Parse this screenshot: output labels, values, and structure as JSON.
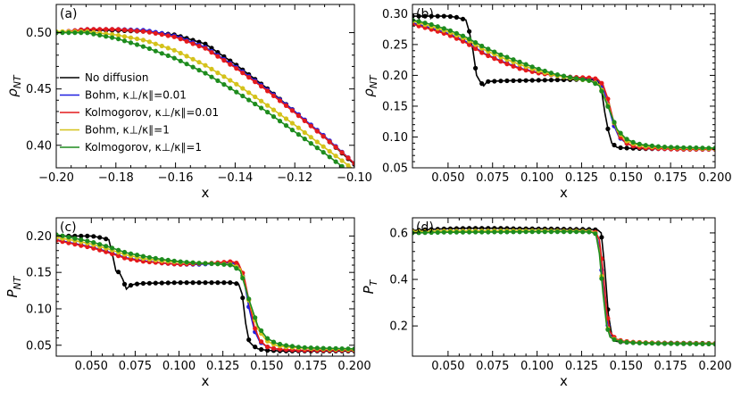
{
  "chart_data": [
    {
      "type": "line",
      "label": "(a)",
      "xlabel": "x",
      "ylabel": "ρNT",
      "ylabel_main": "ρ",
      "ylabel_sub": "NT",
      "xlim": [
        -0.2,
        -0.1
      ],
      "ylim": [
        0.38,
        0.525
      ],
      "xticks": [
        -0.2,
        -0.18,
        -0.16,
        -0.14,
        -0.12,
        -0.1
      ],
      "xtick_labels": [
        "−0.20",
        "−0.18",
        "−0.16",
        "−0.14",
        "−0.12",
        "−0.10"
      ],
      "yticks": [
        0.4,
        0.45,
        0.5
      ],
      "ytick_labels": [
        "0.40",
        "0.45",
        "0.50"
      ],
      "legend": {
        "placement": "center-left",
        "entries": [
          {
            "label": "No diffusion",
            "color": "#000000"
          },
          {
            "label": "Bohm, κ⊥/κ∥=0.01",
            "color": "#1f1fe0"
          },
          {
            "label": "Kolmogorov, κ⊥/κ∥=0.01",
            "color": "#e41a1c"
          },
          {
            "label": "Bohm, κ⊥/κ∥=1",
            "color": "#d4c21a"
          },
          {
            "label": "Kolmogorov, κ⊥/κ∥=1",
            "color": "#1e8c1e"
          }
        ]
      },
      "series": [
        {
          "name": "No diffusion",
          "color": "#000000",
          "x": [
            -0.2,
            -0.19,
            -0.18,
            -0.17,
            -0.16,
            -0.15,
            -0.14,
            -0.13,
            -0.12,
            -0.11,
            -0.1
          ],
          "y": [
            0.5,
            0.502,
            0.502,
            0.501,
            0.498,
            0.49,
            0.472,
            0.452,
            0.43,
            0.407,
            0.383
          ]
        },
        {
          "name": "Bohm, κ⊥/κ∥=0.01",
          "color": "#1f1fe0",
          "x": [
            -0.2,
            -0.19,
            -0.18,
            -0.17,
            -0.16,
            -0.15,
            -0.14,
            -0.13,
            -0.12,
            -0.11,
            -0.1
          ],
          "y": [
            0.5,
            0.503,
            0.503,
            0.502,
            0.497,
            0.487,
            0.47,
            0.451,
            0.43,
            0.408,
            0.384
          ]
        },
        {
          "name": "Kolmogorov, κ⊥/κ∥=0.01",
          "color": "#e41a1c",
          "x": [
            -0.2,
            -0.19,
            -0.18,
            -0.17,
            -0.16,
            -0.15,
            -0.14,
            -0.13,
            -0.12,
            -0.11,
            -0.1
          ],
          "y": [
            0.5,
            0.503,
            0.503,
            0.501,
            0.496,
            0.486,
            0.469,
            0.45,
            0.429,
            0.407,
            0.384
          ]
        },
        {
          "name": "Bohm, κ⊥/κ∥=1",
          "color": "#d4c21a",
          "x": [
            -0.2,
            -0.19,
            -0.18,
            -0.17,
            -0.16,
            -0.15,
            -0.14,
            -0.13,
            -0.12,
            -0.11,
            -0.1
          ],
          "y": [
            0.501,
            0.501,
            0.498,
            0.493,
            0.484,
            0.471,
            0.455,
            0.437,
            0.418,
            0.398,
            0.378
          ]
        },
        {
          "name": "Kolmogorov, κ⊥/κ∥=1",
          "color": "#1e8c1e",
          "x": [
            -0.2,
            -0.19,
            -0.18,
            -0.17,
            -0.16,
            -0.15,
            -0.14,
            -0.13,
            -0.12,
            -0.11,
            -0.1
          ],
          "y": [
            0.5,
            0.5,
            0.495,
            0.487,
            0.477,
            0.464,
            0.448,
            0.431,
            0.412,
            0.393,
            0.373
          ]
        }
      ]
    },
    {
      "type": "line",
      "label": "(b)",
      "xlabel": "x",
      "ylabel": "ρNT",
      "ylabel_main": "ρ",
      "ylabel_sub": "NT",
      "xlim": [
        0.03,
        0.2
      ],
      "ylim": [
        0.05,
        0.315
      ],
      "xticks": [
        0.05,
        0.075,
        0.1,
        0.125,
        0.15,
        0.175,
        0.2
      ],
      "xtick_labels": [
        "0.050",
        "0.075",
        "0.100",
        "0.125",
        "0.150",
        "0.175",
        "0.200"
      ],
      "yticks": [
        0.05,
        0.1,
        0.15,
        0.2,
        0.25,
        0.3
      ],
      "ytick_labels": [
        "0.05",
        "0.10",
        "0.15",
        "0.20",
        "0.25",
        "0.30"
      ],
      "series": [
        {
          "name": "No diffusion",
          "color": "#000000",
          "x": [
            0.03,
            0.04,
            0.05,
            0.055,
            0.06,
            0.062,
            0.064,
            0.066,
            0.068,
            0.07,
            0.072,
            0.08,
            0.1,
            0.12,
            0.13,
            0.134,
            0.136,
            0.138,
            0.14,
            0.142,
            0.145,
            0.15,
            0.16,
            0.2
          ],
          "y": [
            0.296,
            0.296,
            0.296,
            0.294,
            0.29,
            0.27,
            0.24,
            0.2,
            0.19,
            0.183,
            0.19,
            0.191,
            0.192,
            0.193,
            0.193,
            0.192,
            0.18,
            0.14,
            0.11,
            0.09,
            0.083,
            0.082,
            0.081,
            0.081
          ]
        },
        {
          "name": "Bohm, κ⊥/κ∥=0.01",
          "color": "#1f1fe0",
          "x": [
            0.03,
            0.04,
            0.05,
            0.06,
            0.07,
            0.08,
            0.09,
            0.1,
            0.11,
            0.12,
            0.13,
            0.134,
            0.137,
            0.14,
            0.143,
            0.146,
            0.15,
            0.155,
            0.16,
            0.17,
            0.18,
            0.2
          ],
          "y": [
            0.285,
            0.277,
            0.268,
            0.255,
            0.236,
            0.223,
            0.212,
            0.205,
            0.2,
            0.197,
            0.195,
            0.193,
            0.18,
            0.15,
            0.12,
            0.1,
            0.09,
            0.084,
            0.082,
            0.081,
            0.08,
            0.08
          ]
        },
        {
          "name": "Kolmogorov, κ⊥/κ∥=0.01",
          "color": "#e41a1c",
          "x": [
            0.03,
            0.04,
            0.05,
            0.06,
            0.07,
            0.08,
            0.09,
            0.1,
            0.11,
            0.12,
            0.13,
            0.134,
            0.137,
            0.14,
            0.143,
            0.146,
            0.15,
            0.155,
            0.16,
            0.17,
            0.18,
            0.2
          ],
          "y": [
            0.283,
            0.275,
            0.266,
            0.253,
            0.235,
            0.222,
            0.211,
            0.204,
            0.2,
            0.197,
            0.196,
            0.194,
            0.185,
            0.16,
            0.125,
            0.102,
            0.09,
            0.084,
            0.082,
            0.081,
            0.08,
            0.08
          ]
        },
        {
          "name": "Bohm, κ⊥/κ∥=1",
          "color": "#d4c21a",
          "x": [
            0.03,
            0.04,
            0.05,
            0.06,
            0.07,
            0.08,
            0.09,
            0.1,
            0.11,
            0.12,
            0.13,
            0.135,
            0.14,
            0.145,
            0.15,
            0.155,
            0.16,
            0.17,
            0.18,
            0.2
          ],
          "y": [
            0.288,
            0.28,
            0.271,
            0.259,
            0.242,
            0.229,
            0.218,
            0.208,
            0.2,
            0.195,
            0.191,
            0.185,
            0.15,
            0.11,
            0.094,
            0.088,
            0.085,
            0.083,
            0.082,
            0.081
          ]
        },
        {
          "name": "Kolmogorov, κ⊥/κ∥=1",
          "color": "#1e8c1e",
          "x": [
            0.03,
            0.04,
            0.05,
            0.06,
            0.07,
            0.08,
            0.09,
            0.1,
            0.11,
            0.12,
            0.13,
            0.135,
            0.14,
            0.145,
            0.15,
            0.155,
            0.16,
            0.17,
            0.18,
            0.2
          ],
          "y": [
            0.29,
            0.283,
            0.274,
            0.262,
            0.246,
            0.233,
            0.222,
            0.211,
            0.202,
            0.196,
            0.191,
            0.183,
            0.148,
            0.112,
            0.097,
            0.09,
            0.087,
            0.084,
            0.083,
            0.082
          ]
        }
      ]
    },
    {
      "type": "line",
      "label": "(c)",
      "xlabel": "x",
      "ylabel": "PNT",
      "ylabel_main": "P",
      "ylabel_sub": "NT",
      "xlim": [
        0.03,
        0.2
      ],
      "ylim": [
        0.035,
        0.225
      ],
      "xticks": [
        0.05,
        0.075,
        0.1,
        0.125,
        0.15,
        0.175,
        0.2
      ],
      "xtick_labels": [
        "0.050",
        "0.075",
        "0.100",
        "0.125",
        "0.150",
        "0.175",
        "0.200"
      ],
      "yticks": [
        0.05,
        0.1,
        0.15,
        0.2
      ],
      "ytick_labels": [
        "0.05",
        "0.10",
        "0.15",
        "0.20"
      ],
      "series": [
        {
          "name": "No diffusion",
          "color": "#000000",
          "x": [
            0.03,
            0.04,
            0.05,
            0.055,
            0.06,
            0.062,
            0.064,
            0.066,
            0.068,
            0.07,
            0.072,
            0.075,
            0.08,
            0.1,
            0.12,
            0.13,
            0.134,
            0.136,
            0.138,
            0.14,
            0.142,
            0.145,
            0.15,
            0.16,
            0.2
          ],
          "y": [
            0.2,
            0.2,
            0.2,
            0.198,
            0.195,
            0.175,
            0.152,
            0.15,
            0.14,
            0.127,
            0.132,
            0.134,
            0.135,
            0.136,
            0.136,
            0.136,
            0.134,
            0.12,
            0.08,
            0.055,
            0.05,
            0.045,
            0.043,
            0.042,
            0.042
          ]
        },
        {
          "name": "Bohm, κ⊥/κ∥=0.01",
          "color": "#1f1fe0",
          "x": [
            0.03,
            0.04,
            0.05,
            0.06,
            0.07,
            0.08,
            0.09,
            0.1,
            0.11,
            0.12,
            0.13,
            0.134,
            0.137,
            0.14,
            0.143,
            0.146,
            0.15,
            0.155,
            0.16,
            0.17,
            0.18,
            0.2
          ],
          "y": [
            0.195,
            0.19,
            0.185,
            0.178,
            0.17,
            0.166,
            0.163,
            0.161,
            0.161,
            0.162,
            0.163,
            0.16,
            0.14,
            0.1,
            0.07,
            0.055,
            0.048,
            0.045,
            0.044,
            0.043,
            0.043,
            0.043
          ]
        },
        {
          "name": "Kolmogorov, κ⊥/κ∥=0.01",
          "color": "#e41a1c",
          "x": [
            0.03,
            0.04,
            0.05,
            0.06,
            0.07,
            0.08,
            0.09,
            0.1,
            0.11,
            0.12,
            0.13,
            0.134,
            0.137,
            0.14,
            0.143,
            0.146,
            0.15,
            0.155,
            0.16,
            0.17,
            0.18,
            0.2
          ],
          "y": [
            0.194,
            0.189,
            0.184,
            0.177,
            0.169,
            0.165,
            0.163,
            0.161,
            0.162,
            0.163,
            0.165,
            0.162,
            0.145,
            0.11,
            0.075,
            0.057,
            0.048,
            0.045,
            0.044,
            0.043,
            0.043,
            0.043
          ]
        },
        {
          "name": "Bohm, κ⊥/κ∥=1",
          "color": "#d4c21a",
          "x": [
            0.03,
            0.04,
            0.05,
            0.06,
            0.07,
            0.08,
            0.09,
            0.1,
            0.11,
            0.12,
            0.13,
            0.135,
            0.14,
            0.145,
            0.15,
            0.155,
            0.16,
            0.17,
            0.18,
            0.2
          ],
          "y": [
            0.198,
            0.194,
            0.189,
            0.182,
            0.174,
            0.169,
            0.166,
            0.164,
            0.163,
            0.162,
            0.161,
            0.155,
            0.11,
            0.072,
            0.056,
            0.05,
            0.048,
            0.046,
            0.045,
            0.044
          ]
        },
        {
          "name": "Kolmogorov, κ⊥/κ∥=1",
          "color": "#1e8c1e",
          "x": [
            0.03,
            0.04,
            0.05,
            0.06,
            0.07,
            0.08,
            0.09,
            0.1,
            0.11,
            0.12,
            0.13,
            0.135,
            0.14,
            0.145,
            0.15,
            0.155,
            0.16,
            0.17,
            0.18,
            0.2
          ],
          "y": [
            0.202,
            0.197,
            0.192,
            0.185,
            0.177,
            0.172,
            0.168,
            0.165,
            0.163,
            0.162,
            0.16,
            0.152,
            0.112,
            0.076,
            0.06,
            0.053,
            0.05,
            0.047,
            0.046,
            0.045
          ]
        }
      ]
    },
    {
      "type": "line",
      "label": "(d)",
      "xlabel": "x",
      "ylabel": "PT",
      "ylabel_main": "P",
      "ylabel_sub": "T",
      "xlim": [
        0.03,
        0.2
      ],
      "ylim": [
        0.07,
        0.665
      ],
      "xticks": [
        0.05,
        0.075,
        0.1,
        0.125,
        0.15,
        0.175,
        0.2
      ],
      "xtick_labels": [
        "0.050",
        "0.075",
        "0.100",
        "0.125",
        "0.150",
        "0.175",
        "0.200"
      ],
      "yticks": [
        0.2,
        0.4,
        0.6
      ],
      "ytick_labels": [
        "0.2",
        "0.4",
        "0.6"
      ],
      "series": [
        {
          "name": "No diffusion",
          "color": "#000000",
          "x": [
            0.03,
            0.04,
            0.05,
            0.06,
            0.07,
            0.08,
            0.09,
            0.1,
            0.11,
            0.12,
            0.13,
            0.134,
            0.136,
            0.138,
            0.14,
            0.142,
            0.144,
            0.148,
            0.155,
            0.2
          ],
          "y": [
            0.61,
            0.615,
            0.618,
            0.62,
            0.62,
            0.62,
            0.618,
            0.618,
            0.617,
            0.616,
            0.615,
            0.613,
            0.6,
            0.45,
            0.25,
            0.16,
            0.135,
            0.13,
            0.128,
            0.125
          ]
        },
        {
          "name": "Bohm, κ⊥/κ∥=0.01",
          "color": "#1f1fe0",
          "x": [
            0.03,
            0.05,
            0.08,
            0.1,
            0.12,
            0.13,
            0.133,
            0.135,
            0.137,
            0.139,
            0.141,
            0.144,
            0.148,
            0.155,
            0.17,
            0.2
          ],
          "y": [
            0.602,
            0.605,
            0.606,
            0.607,
            0.607,
            0.606,
            0.6,
            0.54,
            0.38,
            0.23,
            0.16,
            0.14,
            0.133,
            0.128,
            0.125,
            0.123
          ]
        },
        {
          "name": "Kolmogorov, κ⊥/κ∥=0.01",
          "color": "#e41a1c",
          "x": [
            0.03,
            0.05,
            0.08,
            0.1,
            0.12,
            0.13,
            0.133,
            0.135,
            0.137,
            0.139,
            0.141,
            0.144,
            0.148,
            0.155,
            0.17,
            0.2
          ],
          "y": [
            0.604,
            0.607,
            0.608,
            0.608,
            0.608,
            0.607,
            0.603,
            0.57,
            0.44,
            0.27,
            0.175,
            0.145,
            0.135,
            0.13,
            0.126,
            0.124
          ]
        },
        {
          "name": "Bohm, κ⊥/κ∥=1",
          "color": "#d4c21a",
          "x": [
            0.03,
            0.05,
            0.08,
            0.1,
            0.12,
            0.13,
            0.133,
            0.135,
            0.137,
            0.139,
            0.141,
            0.144,
            0.148,
            0.155,
            0.17,
            0.2
          ],
          "y": [
            0.606,
            0.608,
            0.609,
            0.609,
            0.608,
            0.607,
            0.598,
            0.52,
            0.35,
            0.21,
            0.155,
            0.14,
            0.132,
            0.128,
            0.125,
            0.123
          ]
        },
        {
          "name": "Kolmogorov, κ⊥/κ∥=1",
          "color": "#1e8c1e",
          "x": [
            0.03,
            0.05,
            0.08,
            0.1,
            0.12,
            0.13,
            0.133,
            0.135,
            0.137,
            0.139,
            0.141,
            0.144,
            0.148,
            0.155,
            0.17,
            0.2
          ],
          "y": [
            0.6,
            0.603,
            0.604,
            0.605,
            0.605,
            0.604,
            0.596,
            0.51,
            0.34,
            0.205,
            0.152,
            0.138,
            0.131,
            0.127,
            0.124,
            0.122
          ]
        }
      ]
    }
  ]
}
